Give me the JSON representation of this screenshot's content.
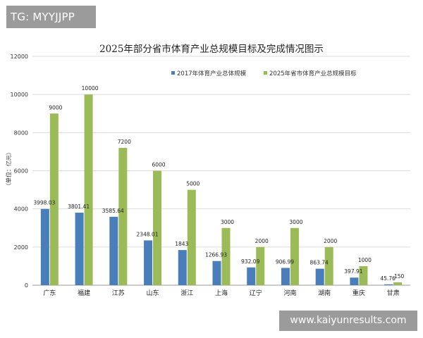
{
  "watermark_top": "TG: MYYJJPP",
  "watermark_bottom": "www.kaiyunresults.com",
  "chart_data": {
    "type": "bar",
    "title": "2025年部分省市体育产业总规模目标及完成情况图示",
    "ylabel": "（单位：亿元）",
    "xlabel": "",
    "ylim": [
      0,
      12000
    ],
    "yticks": [
      0,
      2000,
      4000,
      6000,
      8000,
      10000,
      12000
    ],
    "grid": true,
    "legend_position": "top-right",
    "categories": [
      "广东",
      "福建",
      "江苏",
      "山东",
      "浙江",
      "上海",
      "辽宁",
      "河南",
      "湖南",
      "重庆",
      "甘肃"
    ],
    "series": [
      {
        "name": "2017年体育产业总体规模",
        "color": "#4a7ebb",
        "values": [
          3998.03,
          3801.41,
          3585.64,
          2348.01,
          1843,
          1266.93,
          932.09,
          906.99,
          863.74,
          397.91,
          45.76
        ],
        "labels": [
          "3998.03",
          "3801.41",
          "3585.64",
          "2348.01",
          "1843",
          "1266.93",
          "932.09",
          "906.99",
          "863.74",
          "397.91",
          "45.76"
        ]
      },
      {
        "name": "2025年省市体育产业总规模目标",
        "color": "#9bbb59",
        "values": [
          9000,
          10000,
          7200,
          6000,
          5000,
          3000,
          2000,
          3000,
          2000,
          1000,
          150
        ],
        "labels": [
          "9000",
          "10000",
          "7200",
          "6000",
          "5000",
          "3000",
          "2000",
          "3000",
          "2000",
          "1000",
          "150"
        ]
      }
    ]
  }
}
